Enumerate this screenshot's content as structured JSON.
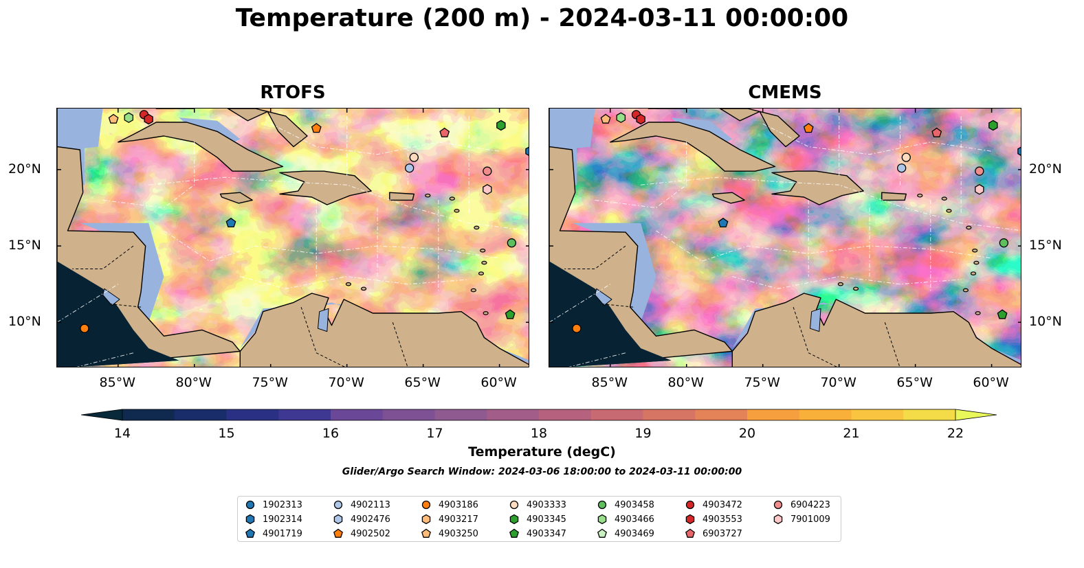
{
  "title": "Temperature (200 m) - 2024-03-11 00:00:00",
  "panels": [
    {
      "title": "RTOFS",
      "variant": "warm"
    },
    {
      "title": "CMEMS",
      "variant": "hot"
    }
  ],
  "axes": {
    "lon_range": [
      -89,
      -58
    ],
    "lat_range": [
      7,
      24
    ],
    "x_ticks": [
      "85°W",
      "80°W",
      "75°W",
      "70°W",
      "65°W",
      "60°W"
    ],
    "x_tick_values": [
      -85,
      -80,
      -75,
      -70,
      -65,
      -60
    ],
    "y_ticks": [
      "20°N",
      "15°N",
      "10°N"
    ],
    "y_tick_values": [
      20,
      15,
      10
    ]
  },
  "colorbar": {
    "label": "Temperature (degC)",
    "ticks": [
      "14",
      "15",
      "16",
      "17",
      "18",
      "19",
      "20",
      "21",
      "22"
    ],
    "tick_values": [
      14,
      15,
      16,
      17,
      18,
      19,
      20,
      21,
      22
    ],
    "min": 13.6,
    "max": 22.4,
    "colors": [
      "#07293a",
      "#102a4f",
      "#1a2d6b",
      "#2a3083",
      "#3f3893",
      "#553f96",
      "#6a4797",
      "#7d5194",
      "#8f5a90",
      "#a25d89",
      "#b6627f",
      "#c86a72",
      "#d77564",
      "#e48258",
      "#ef904a",
      "#f59f3e",
      "#f9b03a",
      "#f9c43f",
      "#f4dc48",
      "#eaf75a"
    ]
  },
  "subtitle": "Glider/Argo Search Window: 2024-03-06 18:00:00 to 2024-03-11 00:00:00",
  "legend": {
    "items": [
      {
        "label": "1902313",
        "color": "#1f77b4",
        "marker": "circle"
      },
      {
        "label": "1902314",
        "color": "#1f77b4",
        "marker": "hexagon"
      },
      {
        "label": "4901719",
        "color": "#1f77b4",
        "marker": "pentagon"
      },
      {
        "label": "4902113",
        "color": "#aec7e8",
        "marker": "circle"
      },
      {
        "label": "4902476",
        "color": "#aec7e8",
        "marker": "hexagon"
      },
      {
        "label": "4902502",
        "color": "#ff7f0e",
        "marker": "pentagon"
      },
      {
        "label": "4903186",
        "color": "#ff7f0e",
        "marker": "circle"
      },
      {
        "label": "4903217",
        "color": "#ffbb78",
        "marker": "hexagon"
      },
      {
        "label": "4903250",
        "color": "#ffbb78",
        "marker": "pentagon"
      },
      {
        "label": "4903333",
        "color": "#ffdcc0",
        "marker": "circle"
      },
      {
        "label": "4903345",
        "color": "#2ca02c",
        "marker": "hexagon"
      },
      {
        "label": "4903347",
        "color": "#2ca02c",
        "marker": "pentagon"
      },
      {
        "label": "4903458",
        "color": "#5fbf5f",
        "marker": "circle"
      },
      {
        "label": "4903466",
        "color": "#98df8a",
        "marker": "hexagon"
      },
      {
        "label": "4903469",
        "color": "#c8f0c0",
        "marker": "pentagon"
      },
      {
        "label": "4903472",
        "color": "#d62728",
        "marker": "circle"
      },
      {
        "label": "4903553",
        "color": "#d62728",
        "marker": "hexagon"
      },
      {
        "label": "6903727",
        "color": "#e8666a",
        "marker": "pentagon"
      },
      {
        "label": "6904223",
        "color": "#f08c8c",
        "marker": "circle"
      },
      {
        "label": "7901009",
        "color": "#ffc7c7",
        "marker": "hexagon"
      }
    ]
  },
  "floats": [
    {
      "id": "4903250",
      "lon": -85.3,
      "lat": 23.3
    },
    {
      "id": "4903466",
      "lon": -84.3,
      "lat": 23.4
    },
    {
      "id": "4903472",
      "lon": -83.3,
      "lat": 23.6
    },
    {
      "id": "4903553",
      "lon": -83.0,
      "lat": 23.3
    },
    {
      "id": "4902502",
      "lon": -72.0,
      "lat": 22.7
    },
    {
      "id": "6903727",
      "lon": -63.6,
      "lat": 22.4
    },
    {
      "id": "4903345",
      "lon": -59.9,
      "lat": 22.9
    },
    {
      "id": "4903333",
      "lon": -65.6,
      "lat": 20.8
    },
    {
      "id": "4902113",
      "lon": -65.9,
      "lat": 20.1
    },
    {
      "id": "6904223",
      "lon": -60.8,
      "lat": 19.9
    },
    {
      "id": "7901009",
      "lon": -60.8,
      "lat": 18.7
    },
    {
      "id": "4901719",
      "lon": -77.6,
      "lat": 16.5
    },
    {
      "id": "4903458",
      "lon": -59.2,
      "lat": 15.2
    },
    {
      "id": "4903347",
      "lon": -59.3,
      "lat": 10.5
    },
    {
      "id": "4903186",
      "lon": -87.2,
      "lat": 9.6
    },
    {
      "id": "1902314",
      "lon": -58.0,
      "lat": 21.2
    }
  ]
}
